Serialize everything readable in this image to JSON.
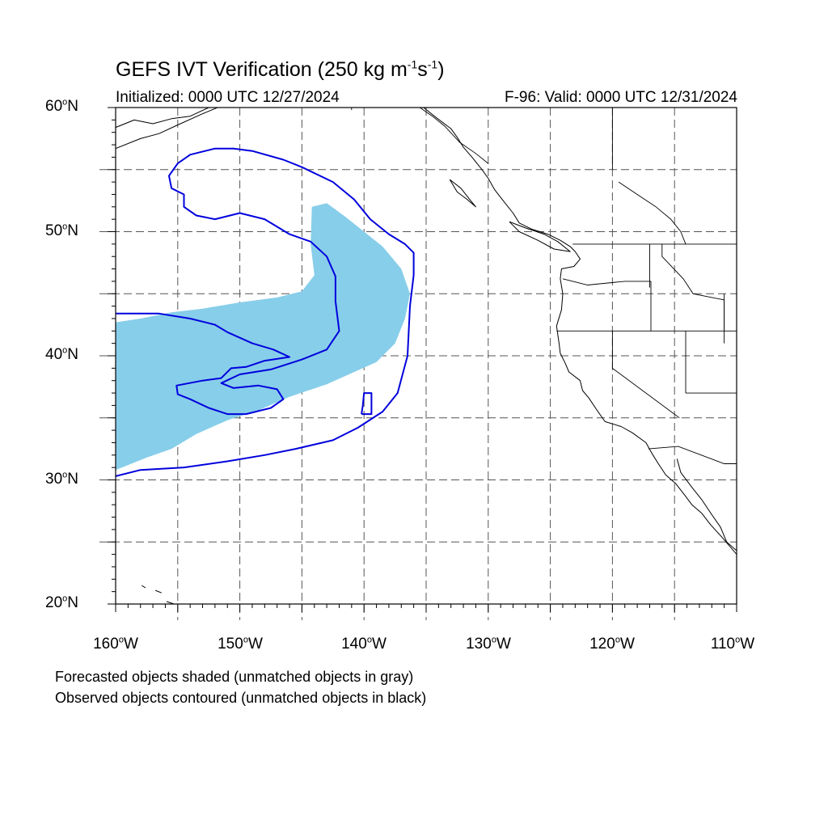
{
  "figure": {
    "title_main": "GEFS IVT Verification (250 kg m",
    "title_exp1": "-1",
    "title_mid": "s",
    "title_exp2": "-1",
    "title_end": ")",
    "initialized": "Initialized: 0000 UTC 12/27/2024",
    "valid": "F-96: Valid: 0000 UTC 12/31/2024",
    "notes": [
      "Forecasted objects shaded (unmatched objects in gray)",
      "Observed objects contoured (unmatched objects in black)"
    ]
  },
  "axes": {
    "lat_labels": [
      {
        "num": "60",
        "hemi": "N"
      },
      {
        "num": "50",
        "hemi": "N"
      },
      {
        "num": "40",
        "hemi": "N"
      },
      {
        "num": "30",
        "hemi": "N"
      },
      {
        "num": "20",
        "hemi": "N"
      }
    ],
    "lon_labels": [
      {
        "num": "160",
        "hemi": "W"
      },
      {
        "num": "150",
        "hemi": "W"
      },
      {
        "num": "140",
        "hemi": "W"
      },
      {
        "num": "130",
        "hemi": "W"
      },
      {
        "num": "120",
        "hemi": "W"
      },
      {
        "num": "110",
        "hemi": "W"
      }
    ],
    "degree_symbol": "o",
    "lat_range": [
      20,
      60
    ],
    "lon_range": [
      -160,
      -110
    ],
    "grid_lats": [
      55,
      50,
      45,
      40,
      35,
      30,
      25
    ],
    "grid_lons": [
      -155,
      -150,
      -145,
      -140,
      -135,
      -130,
      -125,
      -120,
      -115
    ]
  },
  "colors": {
    "forecast_fill": "#87ceea",
    "observed_contour": "#0000dd",
    "coastline": "#000000",
    "grid": "#555555"
  },
  "map_data": {
    "forecast_object": [
      [
        -160,
        42.7
      ],
      [
        -158,
        43
      ],
      [
        -155.5,
        43.5
      ],
      [
        -153,
        43.8
      ],
      [
        -150,
        44.3
      ],
      [
        -147,
        44.7
      ],
      [
        -145,
        45.2
      ],
      [
        -144,
        46.5
      ],
      [
        -144.3,
        49
      ],
      [
        -144.2,
        52
      ],
      [
        -143,
        52.3
      ],
      [
        -141.5,
        51.2
      ],
      [
        -140,
        50
      ],
      [
        -138.5,
        48.8
      ],
      [
        -137,
        47
      ],
      [
        -136.3,
        45
      ],
      [
        -136.7,
        43
      ],
      [
        -137.5,
        41
      ],
      [
        -139,
        39.5
      ],
      [
        -141,
        38.6
      ],
      [
        -143,
        37.7
      ],
      [
        -146,
        36.7
      ],
      [
        -148.5,
        35.6
      ],
      [
        -151,
        34.8
      ],
      [
        -153.5,
        33.7
      ],
      [
        -155.5,
        32.5
      ],
      [
        -157.5,
        31.8
      ],
      [
        -159,
        31.2
      ],
      [
        -160,
        30.8
      ]
    ],
    "observed_contour": [
      [
        -160,
        30.3
      ],
      [
        -158,
        30.8
      ],
      [
        -154.5,
        31
      ],
      [
        -151,
        31.5
      ],
      [
        -148,
        32
      ],
      [
        -145.5,
        32.5
      ],
      [
        -142.5,
        33.2
      ],
      [
        -140.5,
        34.2
      ],
      [
        -138.5,
        35.5
      ],
      [
        -137.3,
        37
      ],
      [
        -136.5,
        40
      ],
      [
        -136.3,
        44
      ],
      [
        -136,
        46.5
      ],
      [
        -136,
        48.3
      ],
      [
        -136.7,
        49
      ],
      [
        -138,
        49.8
      ],
      [
        -139.5,
        51
      ],
      [
        -140.8,
        52.6
      ],
      [
        -142.5,
        54
      ],
      [
        -145,
        55.2
      ],
      [
        -146.5,
        55.8
      ],
      [
        -149,
        56.5
      ],
      [
        -150.5,
        56.7
      ],
      [
        -152,
        56.7
      ],
      [
        -154,
        56.2
      ],
      [
        -155,
        55.5
      ],
      [
        -155.7,
        54.5
      ],
      [
        -155.5,
        53.5
      ],
      [
        -154.5,
        53
      ],
      [
        -154.5,
        52
      ],
      [
        -153.5,
        51.3
      ],
      [
        -152,
        51
      ],
      [
        -150,
        51.5
      ],
      [
        -148,
        51
      ],
      [
        -146,
        49.8
      ],
      [
        -144.3,
        49.2
      ],
      [
        -143,
        48
      ],
      [
        -142.3,
        46.4
      ],
      [
        -142.3,
        44.4
      ],
      [
        -142,
        42
      ],
      [
        -143,
        40.5
      ],
      [
        -145,
        39.7
      ],
      [
        -147.5,
        38.9
      ],
      [
        -150,
        38.5
      ],
      [
        -151.5,
        37.8
      ],
      [
        -150.5,
        37.4
      ],
      [
        -148.5,
        37.6
      ],
      [
        -147,
        37.3
      ],
      [
        -146.5,
        36.5
      ],
      [
        -147.5,
        35.8
      ],
      [
        -149.5,
        35.3
      ],
      [
        -151,
        35.3
      ],
      [
        -152.5,
        35.8
      ],
      [
        -154,
        36.5
      ],
      [
        -155,
        36.9
      ],
      [
        -155.1,
        37.6
      ],
      [
        -153,
        38
      ],
      [
        -151.5,
        38.2
      ],
      [
        -150.7,
        39
      ],
      [
        -149.5,
        39.1
      ],
      [
        -148,
        39.6
      ],
      [
        -146,
        39.9
      ],
      [
        -147.3,
        40.5
      ],
      [
        -149,
        41
      ],
      [
        -151,
        41.9
      ],
      [
        -152,
        42.5
      ],
      [
        -154,
        43
      ],
      [
        -156.5,
        43.4
      ],
      [
        -160,
        43.4
      ]
    ],
    "observed_small": [
      [
        -140.2,
        35.3
      ],
      [
        -139.4,
        35.3
      ],
      [
        -139.4,
        37
      ],
      [
        -140,
        37
      ],
      [
        -140.1,
        36
      ],
      [
        -140.2,
        35.3
      ]
    ],
    "coastlines": [
      [
        [
          -160,
          58.4
        ],
        [
          -158.5,
          59
        ],
        [
          -157,
          58.7
        ],
        [
          -155.5,
          59.1
        ],
        [
          -154,
          59.3
        ],
        [
          -152.5,
          60
        ]
      ],
      [
        [
          -160,
          56.7
        ],
        [
          -158,
          57.5
        ],
        [
          -156.5,
          57.9
        ],
        [
          -155,
          58.6
        ],
        [
          -153,
          59.5
        ],
        [
          -151.8,
          60
        ]
      ],
      [
        [
          -135.2,
          60
        ],
        [
          -134.2,
          59.2
        ],
        [
          -133,
          58.3
        ],
        [
          -132.5,
          57.6
        ],
        [
          -132,
          56.8
        ],
        [
          -131.3,
          56
        ],
        [
          -130.5,
          55
        ],
        [
          -130,
          54.3
        ],
        [
          -129.5,
          53.4
        ],
        [
          -128.8,
          52.5
        ],
        [
          -128,
          51.5
        ],
        [
          -127.5,
          50.7
        ],
        [
          -126.5,
          50.2
        ],
        [
          -125.2,
          49.8
        ],
        [
          -124.2,
          49.3
        ],
        [
          -123.4,
          48.8
        ],
        [
          -123,
          48.4
        ],
        [
          -122.6,
          47.8
        ],
        [
          -123.1,
          47.2
        ],
        [
          -124.1,
          47
        ],
        [
          -124.2,
          46.2
        ],
        [
          -124,
          45
        ],
        [
          -124.1,
          43.7
        ],
        [
          -124.5,
          42.4
        ],
        [
          -124.3,
          41
        ],
        [
          -124.2,
          40.2
        ],
        [
          -123.8,
          39.4
        ],
        [
          -123.5,
          38.7
        ],
        [
          -122.6,
          38
        ],
        [
          -122.4,
          37.2
        ],
        [
          -121.9,
          36.6
        ],
        [
          -121.3,
          35.7
        ],
        [
          -120.6,
          34.7
        ],
        [
          -119.3,
          34.3
        ],
        [
          -118.4,
          33.8
        ],
        [
          -117.3,
          33
        ],
        [
          -116.8,
          32.1
        ],
        [
          -116.3,
          31.3
        ],
        [
          -115.7,
          30.4
        ],
        [
          -114.9,
          29.7
        ],
        [
          -114.2,
          28.8
        ],
        [
          -113.6,
          28
        ],
        [
          -112.8,
          27.3
        ],
        [
          -112.1,
          26.4
        ],
        [
          -111.2,
          25.4
        ],
        [
          -110,
          24
        ]
      ],
      [
        [
          -133.1,
          54.2
        ],
        [
          -132.2,
          53.5
        ],
        [
          -131.5,
          52.6
        ],
        [
          -131,
          52
        ],
        [
          -131.7,
          52.6
        ],
        [
          -132.5,
          53.2
        ],
        [
          -133.1,
          54.2
        ]
      ],
      [
        [
          -128.3,
          50.8
        ],
        [
          -127,
          50.3
        ],
        [
          -125.5,
          49.8
        ],
        [
          -124.4,
          49.2
        ],
        [
          -123.4,
          48.4
        ],
        [
          -124.7,
          48.6
        ],
        [
          -126,
          49.3
        ],
        [
          -127.5,
          50
        ],
        [
          -128.3,
          50.8
        ]
      ],
      [
        [
          -114.8,
          31.7
        ],
        [
          -114.5,
          30.6
        ],
        [
          -113.6,
          29.4
        ],
        [
          -112.8,
          28.4
        ],
        [
          -112,
          27.2
        ],
        [
          -111.3,
          26.2
        ],
        [
          -110.8,
          25
        ],
        [
          -110,
          24.3
        ]
      ],
      [
        [
          -160,
          19.8
        ],
        [
          -159.6,
          19.5
        ]
      ],
      [
        [
          -157.9,
          21.5
        ],
        [
          -157.6,
          21.3
        ]
      ],
      [
        [
          -156.8,
          21.1
        ],
        [
          -156.3,
          20.9
        ]
      ],
      [
        [
          -155.9,
          20.2
        ],
        [
          -155.3,
          20
        ],
        [
          -155.1,
          19.6
        ]
      ]
    ],
    "borders": [
      [
        [
          -123.2,
          49
        ],
        [
          -110,
          49
        ]
      ],
      [
        [
          -124.5,
          42
        ],
        [
          -110,
          42
        ]
      ],
      [
        [
          -116.9,
          46
        ],
        [
          -116.9,
          42
        ]
      ],
      [
        [
          -120,
          42
        ],
        [
          -120,
          39
        ],
        [
          -114.6,
          35
        ]
      ],
      [
        [
          -114.1,
          42
        ],
        [
          -114.1,
          37
        ]
      ],
      [
        [
          -114.1,
          37
        ],
        [
          -110,
          37
        ]
      ],
      [
        [
          -117.1,
          32.5
        ],
        [
          -114.7,
          32.7
        ],
        [
          -111,
          31.3
        ],
        [
          -110,
          31.3
        ]
      ],
      [
        [
          -117,
          49
        ],
        [
          -117,
          45.5
        ]
      ],
      [
        [
          -116,
          49
        ],
        [
          -116,
          48
        ],
        [
          -114.3,
          46.2
        ],
        [
          -113.5,
          45
        ],
        [
          -111,
          44.5
        ],
        [
          -111,
          42
        ]
      ],
      [
        [
          -111,
          45
        ],
        [
          -111,
          41
        ]
      ],
      [
        [
          -124,
          46.2
        ],
        [
          -122,
          45.7
        ],
        [
          -119,
          46
        ],
        [
          -116.9,
          46
        ]
      ],
      [
        [
          -141,
          60
        ],
        [
          -141,
          59.8
        ]
      ],
      [
        [
          -135.5,
          60
        ],
        [
          -134.5,
          59.3
        ],
        [
          -133.5,
          58.5
        ],
        [
          -132.3,
          57.2
        ],
        [
          -131,
          56.3
        ],
        [
          -130,
          55.5
        ]
      ],
      [
        [
          -120,
          60
        ],
        [
          -120,
          55
        ]
      ],
      [
        [
          -119.5,
          54
        ],
        [
          -118,
          53
        ],
        [
          -116.5,
          52
        ],
        [
          -115.3,
          51
        ],
        [
          -114.5,
          50
        ],
        [
          -114.1,
          49
        ]
      ]
    ]
  }
}
